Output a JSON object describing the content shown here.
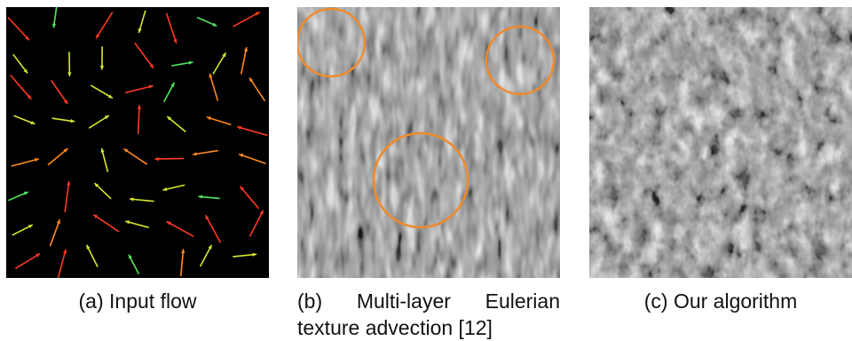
{
  "figure": {
    "panels": [
      {
        "id": "a",
        "label": "(a)",
        "caption": "Input flow"
      },
      {
        "id": "b",
        "label": "(b)",
        "caption_words": [
          "Multi-layer",
          "Eulerian"
        ],
        "caption_line2": "texture advection [12]",
        "highlight_color": "#f08a2a",
        "highlight_count": 3
      },
      {
        "id": "c",
        "label": "(c)",
        "caption": "Our algorithm"
      }
    ],
    "arrow_colormap": [
      "#2aa0ff",
      "#20e0b0",
      "#50e860",
      "#d8e830",
      "#ff8a20",
      "#ff3a20"
    ]
  }
}
